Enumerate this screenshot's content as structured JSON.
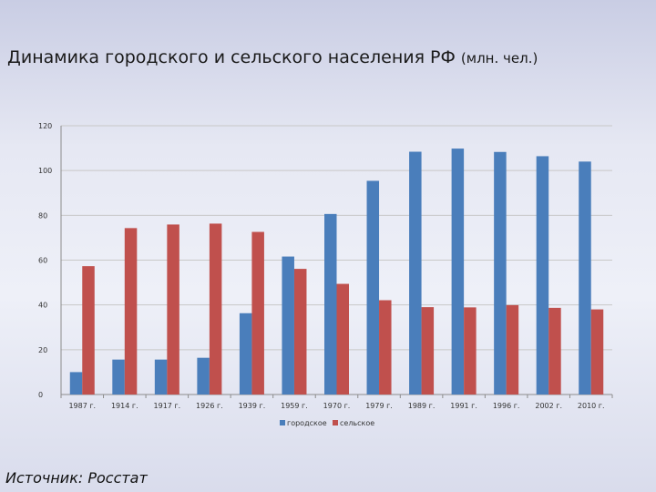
{
  "slide": {
    "title": "Динамика городского и сельского населения РФ",
    "title_unit": "(млн. чел.)",
    "source": "Источник: Росстат"
  },
  "chart_data": {
    "type": "bar",
    "categories": [
      "1987 г.",
      "1914 г.",
      "1917 г.",
      "1926 г.",
      "1939 г.",
      "1959 г.",
      "1970 г.",
      "1979 г.",
      "1989 г.",
      "1991 г.",
      "1996 г.",
      "2002 г.",
      "2010 г."
    ],
    "series": [
      {
        "name": "городское",
        "color": "#4a7ebb",
        "values": [
          10,
          15.6,
          15.6,
          16.4,
          36.3,
          61.6,
          80.6,
          95.4,
          108.4,
          109.8,
          108.3,
          106.4,
          104.0
        ]
      },
      {
        "name": "сельское",
        "color": "#c0504d",
        "values": [
          57.3,
          74.3,
          75.9,
          76.3,
          72.6,
          56.1,
          49.4,
          42.1,
          39.0,
          38.9,
          39.9,
          38.7,
          38.0
        ]
      }
    ],
    "ylim": [
      0,
      120
    ],
    "yticks": [
      0,
      20,
      40,
      60,
      80,
      100,
      120
    ],
    "grid": true,
    "legend": "bottom"
  }
}
